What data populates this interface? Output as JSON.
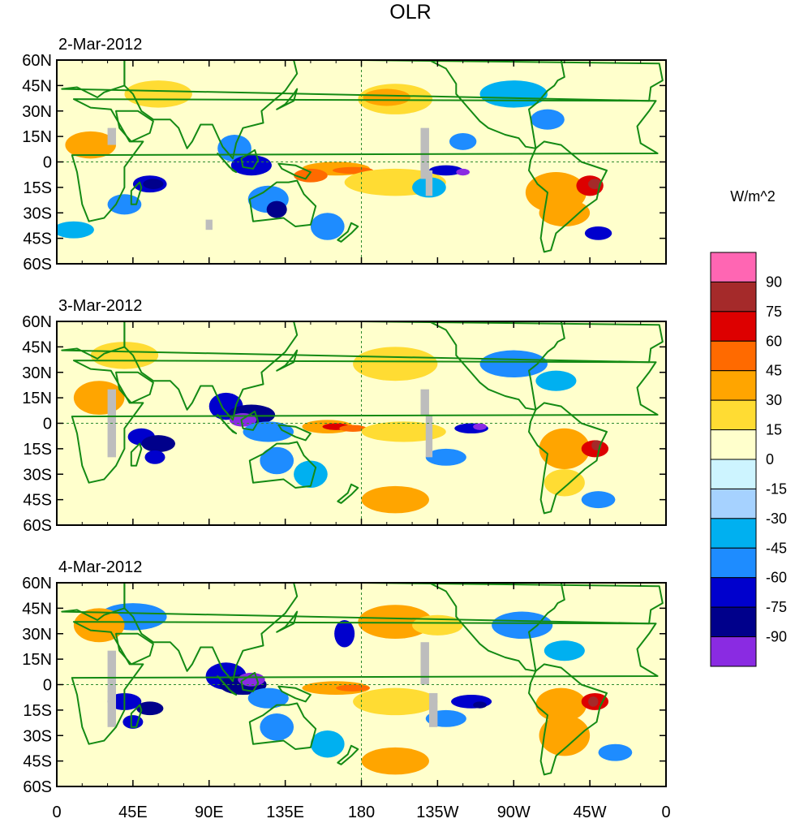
{
  "title": "OLR",
  "unit_label": "W/m^2",
  "panels": [
    {
      "date": "2-Mar-2012"
    },
    {
      "date": "3-Mar-2012"
    },
    {
      "date": "4-Mar-2012"
    }
  ],
  "lat_labels": [
    "60N",
    "45N",
    "30N",
    "15N",
    "0",
    "15S",
    "30S",
    "45S",
    "60S"
  ],
  "lon_labels": [
    "0",
    "45E",
    "90E",
    "135E",
    "180",
    "135W",
    "90W",
    "45W",
    "0"
  ],
  "colorbar": {
    "labels": [
      "90",
      "75",
      "60",
      "45",
      "30",
      "15",
      "0",
      "-15",
      "-30",
      "-45",
      "-60",
      "-75",
      "-90"
    ],
    "colors": [
      "#ff66b3",
      "#a52a2a",
      "#dd0000",
      "#ff6a00",
      "#ffa500",
      "#ffdc33",
      "#ffffcc",
      "#cdf4ff",
      "#a6d2ff",
      "#00b0f0",
      "#1e8cff",
      "#0000cd",
      "#00008b",
      "#8a2be2"
    ]
  },
  "palette": {
    "land_outline": "#148a14",
    "grid_dash": "#2e8b2e",
    "missing": "#bdbdbd"
  }
}
